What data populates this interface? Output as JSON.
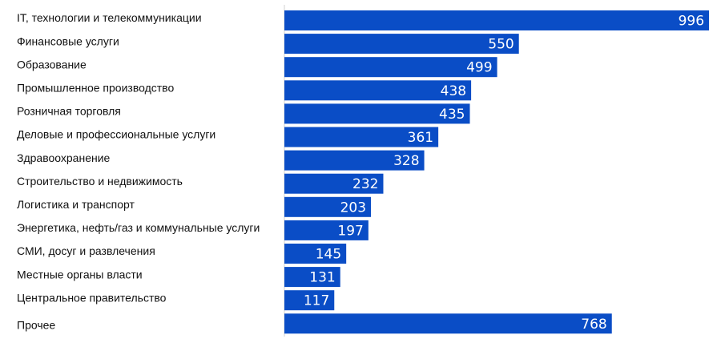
{
  "chart_data": {
    "type": "bar",
    "orientation": "horizontal",
    "categories": [
      "IT, технологии и телекоммуникации",
      "Финансовые услуги",
      "Образование",
      "Промышленное производство",
      "Розничная торговля",
      "Деловые и профессиональные услуги",
      "Здравоохранение",
      "Строительство и недвижимость",
      "Логистика и транспорт",
      "Энергетика, нефть/газ и коммунальные услуги",
      "СМИ, досуг и развлечения",
      "Местные органы власти",
      "Центральное правительство",
      "Прочее"
    ],
    "values": [
      996,
      550,
      499,
      438,
      435,
      361,
      328,
      232,
      203,
      197,
      145,
      131,
      117,
      768
    ],
    "value_labels": [
      "996",
      "550",
      "499",
      "438",
      "435",
      "361",
      "328",
      "232",
      "203",
      "197",
      "145",
      "131",
      "117",
      "768"
    ],
    "title": "",
    "xlabel": "",
    "ylabel": "",
    "xlim": [
      0,
      1000
    ],
    "grid": false,
    "legend": "none",
    "bar_color": "#0A4DC6",
    "label_color": "#FFFFFF"
  }
}
